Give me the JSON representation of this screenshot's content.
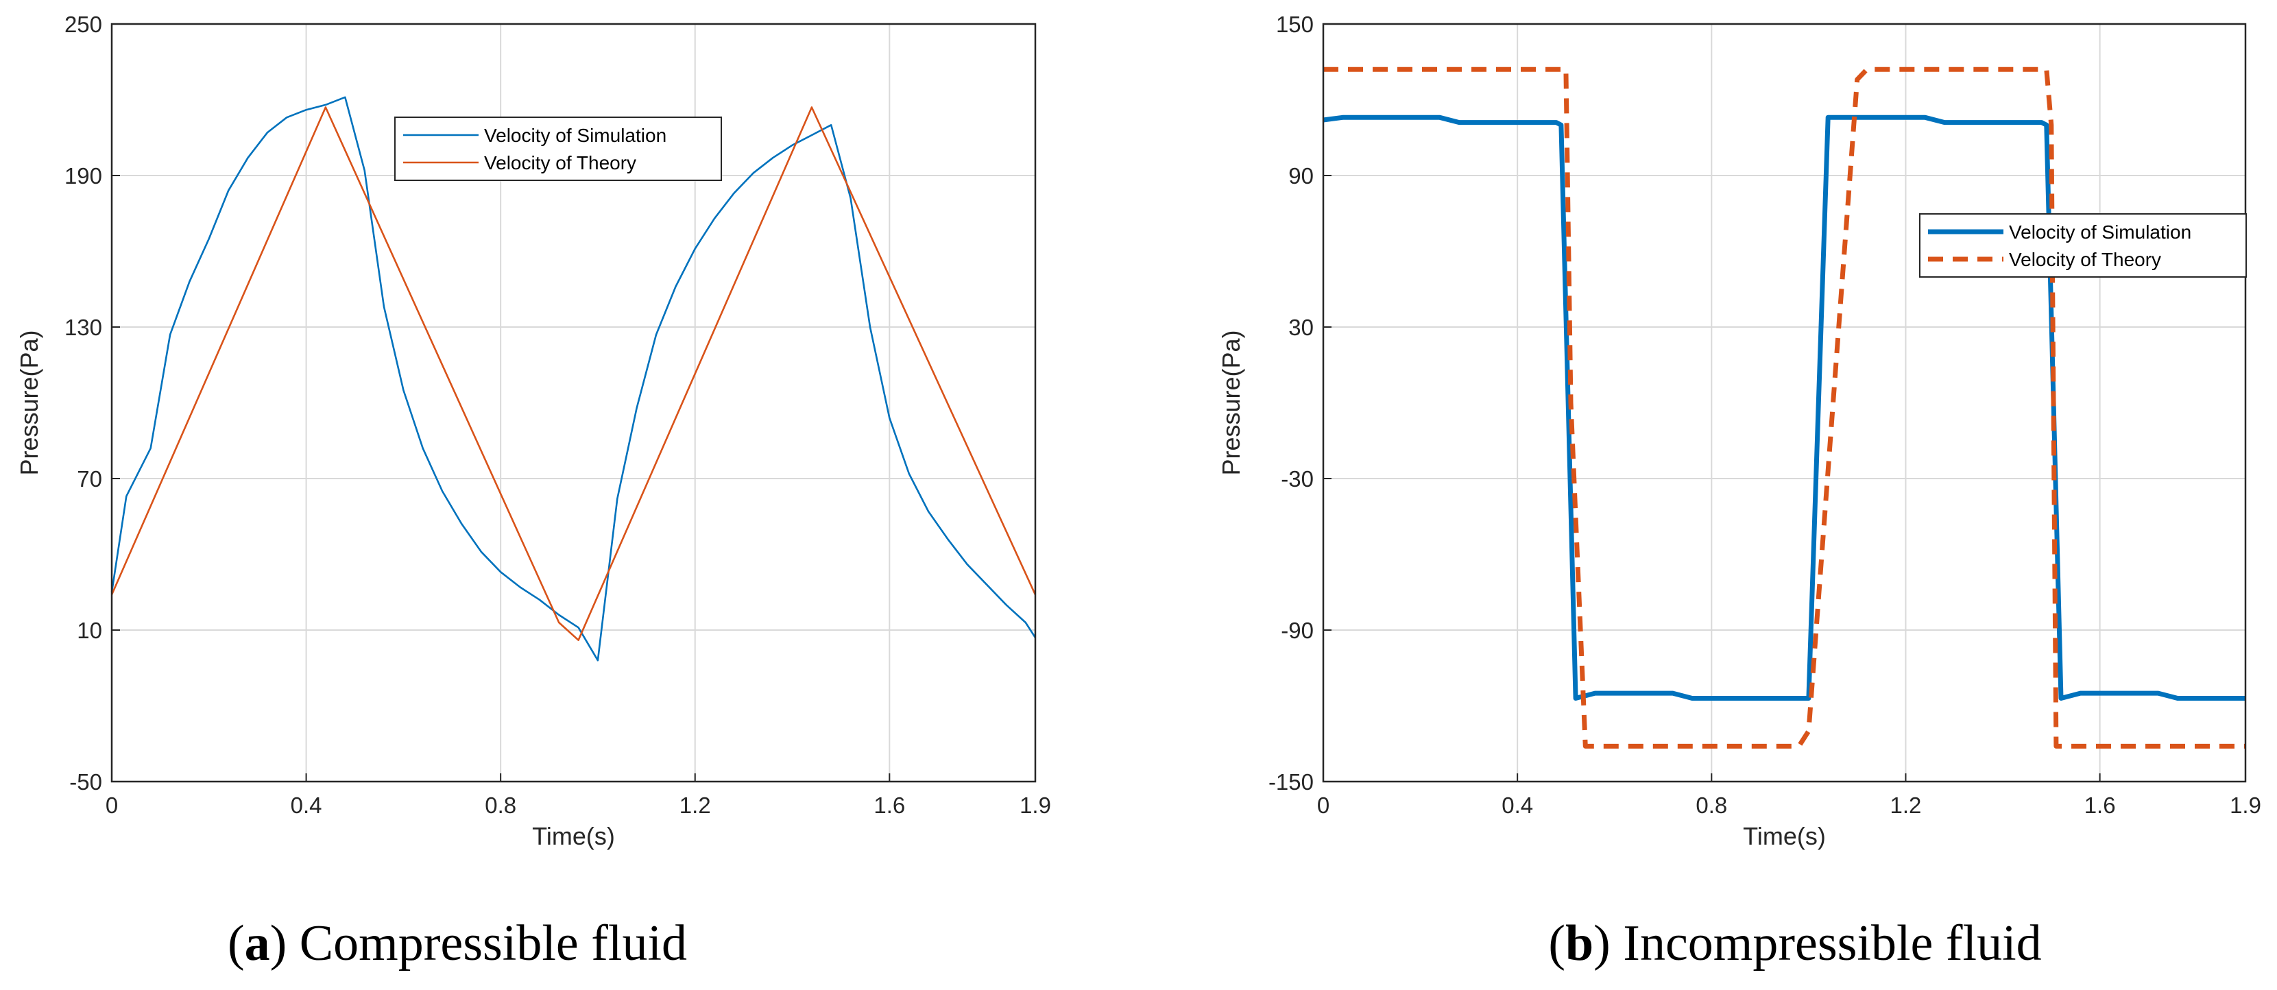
{
  "colors": {
    "simulation": "#0072BD",
    "theory": "#D95319",
    "grid": "#D9D9D9",
    "axis": "#262626"
  },
  "chart_data": [
    {
      "type": "line",
      "panel_letter": "a",
      "caption": "Compressible fluid",
      "xlabel": "Time(s)",
      "ylabel": "Pressure(Pa)",
      "xlim": [
        0,
        1.9
      ],
      "ylim": [
        -50,
        250
      ],
      "xticks": [
        "0",
        "0.4",
        "0.8",
        "1.2",
        "1.6",
        "1.9"
      ],
      "yticks": [
        "-50",
        "10",
        "70",
        "130",
        "190",
        "250"
      ],
      "grid": true,
      "legend_position": "top-center",
      "legend": [
        "Velocity of Simulation",
        "Velocity of Theory"
      ],
      "series": [
        {
          "name": "Velocity of Simulation",
          "style": "solid-thin",
          "x": [
            0,
            0.04,
            0.08,
            0.12,
            0.16,
            0.2,
            0.24,
            0.28,
            0.32,
            0.36,
            0.4,
            0.44,
            0.48,
            0.52,
            0.56,
            0.6,
            0.64,
            0.68,
            0.72,
            0.76,
            0.8,
            0.84,
            0.88,
            0.92,
            0.96,
            1.0,
            1.04,
            1.08,
            1.12,
            1.16,
            1.2,
            1.24,
            1.28,
            1.32,
            1.36,
            1.4,
            1.44,
            1.48,
            1.52,
            1.56,
            1.6,
            1.64,
            1.68,
            1.72,
            1.76,
            1.8,
            1.84,
            1.88,
            1.9
          ],
          "y": [
            25,
            63,
            82,
            127,
            148,
            165,
            184,
            197,
            207,
            213,
            216,
            218,
            221,
            192,
            138,
            105,
            82,
            65,
            52,
            41,
            33,
            27,
            22,
            16,
            11,
            -2,
            62,
            98,
            127,
            146,
            161,
            173,
            183,
            191,
            197,
            202,
            206,
            210,
            181,
            130,
            94,
            72,
            57,
            46,
            36,
            28,
            20,
            13,
            7
          ],
          "x_actual": [
            0,
            0.03,
            0.08,
            0.12,
            0.16,
            0.2,
            0.24,
            0.28,
            0.32,
            0.36,
            0.4,
            0.44,
            0.48,
            0.52,
            0.56,
            0.6,
            0.64,
            0.68,
            0.72,
            0.76,
            0.8,
            0.84,
            0.88,
            0.92,
            0.96,
            1.0,
            1.04,
            1.08,
            1.12,
            1.16,
            1.2,
            1.24,
            1.28,
            1.32,
            1.36,
            1.4,
            1.44,
            1.48,
            1.52,
            1.56,
            1.6,
            1.64,
            1.68,
            1.72,
            1.76,
            1.8,
            1.84,
            1.88,
            1.9
          ]
        },
        {
          "name": "Velocity of Theory",
          "style": "solid-thin",
          "x": [
            0,
            0.44,
            0.92,
            0.96,
            1.44,
            1.9
          ],
          "y": [
            24,
            217,
            13,
            6,
            217,
            24
          ]
        }
      ]
    },
    {
      "type": "line",
      "panel_letter": "b",
      "caption": "Incompressible fluid",
      "xlabel": "Time(s)",
      "ylabel": "Pressure(Pa)",
      "xlim": [
        0,
        1.9
      ],
      "ylim": [
        -150,
        150
      ],
      "xticks": [
        "0",
        "0.4",
        "0.8",
        "1.2",
        "1.6",
        "1.9"
      ],
      "yticks": [
        "-150",
        "-90",
        "-30",
        "30",
        "90",
        "150"
      ],
      "grid": true,
      "legend_position": "right",
      "legend": [
        "Velocity of Simulation",
        "Velocity of Theory"
      ],
      "series": [
        {
          "name": "Velocity of Simulation",
          "style": "solid-thick",
          "x": [
            0,
            0.04,
            0.24,
            0.28,
            0.48,
            0.49,
            0.52,
            0.56,
            0.72,
            0.76,
            1.0,
            1.04,
            1.24,
            1.28,
            1.48,
            1.49,
            1.52,
            1.56,
            1.72,
            1.76,
            1.9
          ],
          "y": [
            112,
            113,
            113,
            111,
            111,
            110,
            -117,
            -115,
            -115,
            -117,
            -117,
            113,
            113,
            111,
            111,
            110,
            -117,
            -115,
            -115,
            -117,
            -117
          ]
        },
        {
          "name": "Velocity of Theory",
          "style": "dashed-thick",
          "x": [
            0,
            0.5,
            0.51,
            0.54,
            0.98,
            1.0,
            1.1,
            1.12,
            1.49,
            1.5,
            1.51,
            1.9
          ],
          "y": [
            132,
            132,
            0,
            -136,
            -136,
            -130,
            128,
            132,
            132,
            110,
            -136,
            -136
          ]
        }
      ]
    }
  ]
}
